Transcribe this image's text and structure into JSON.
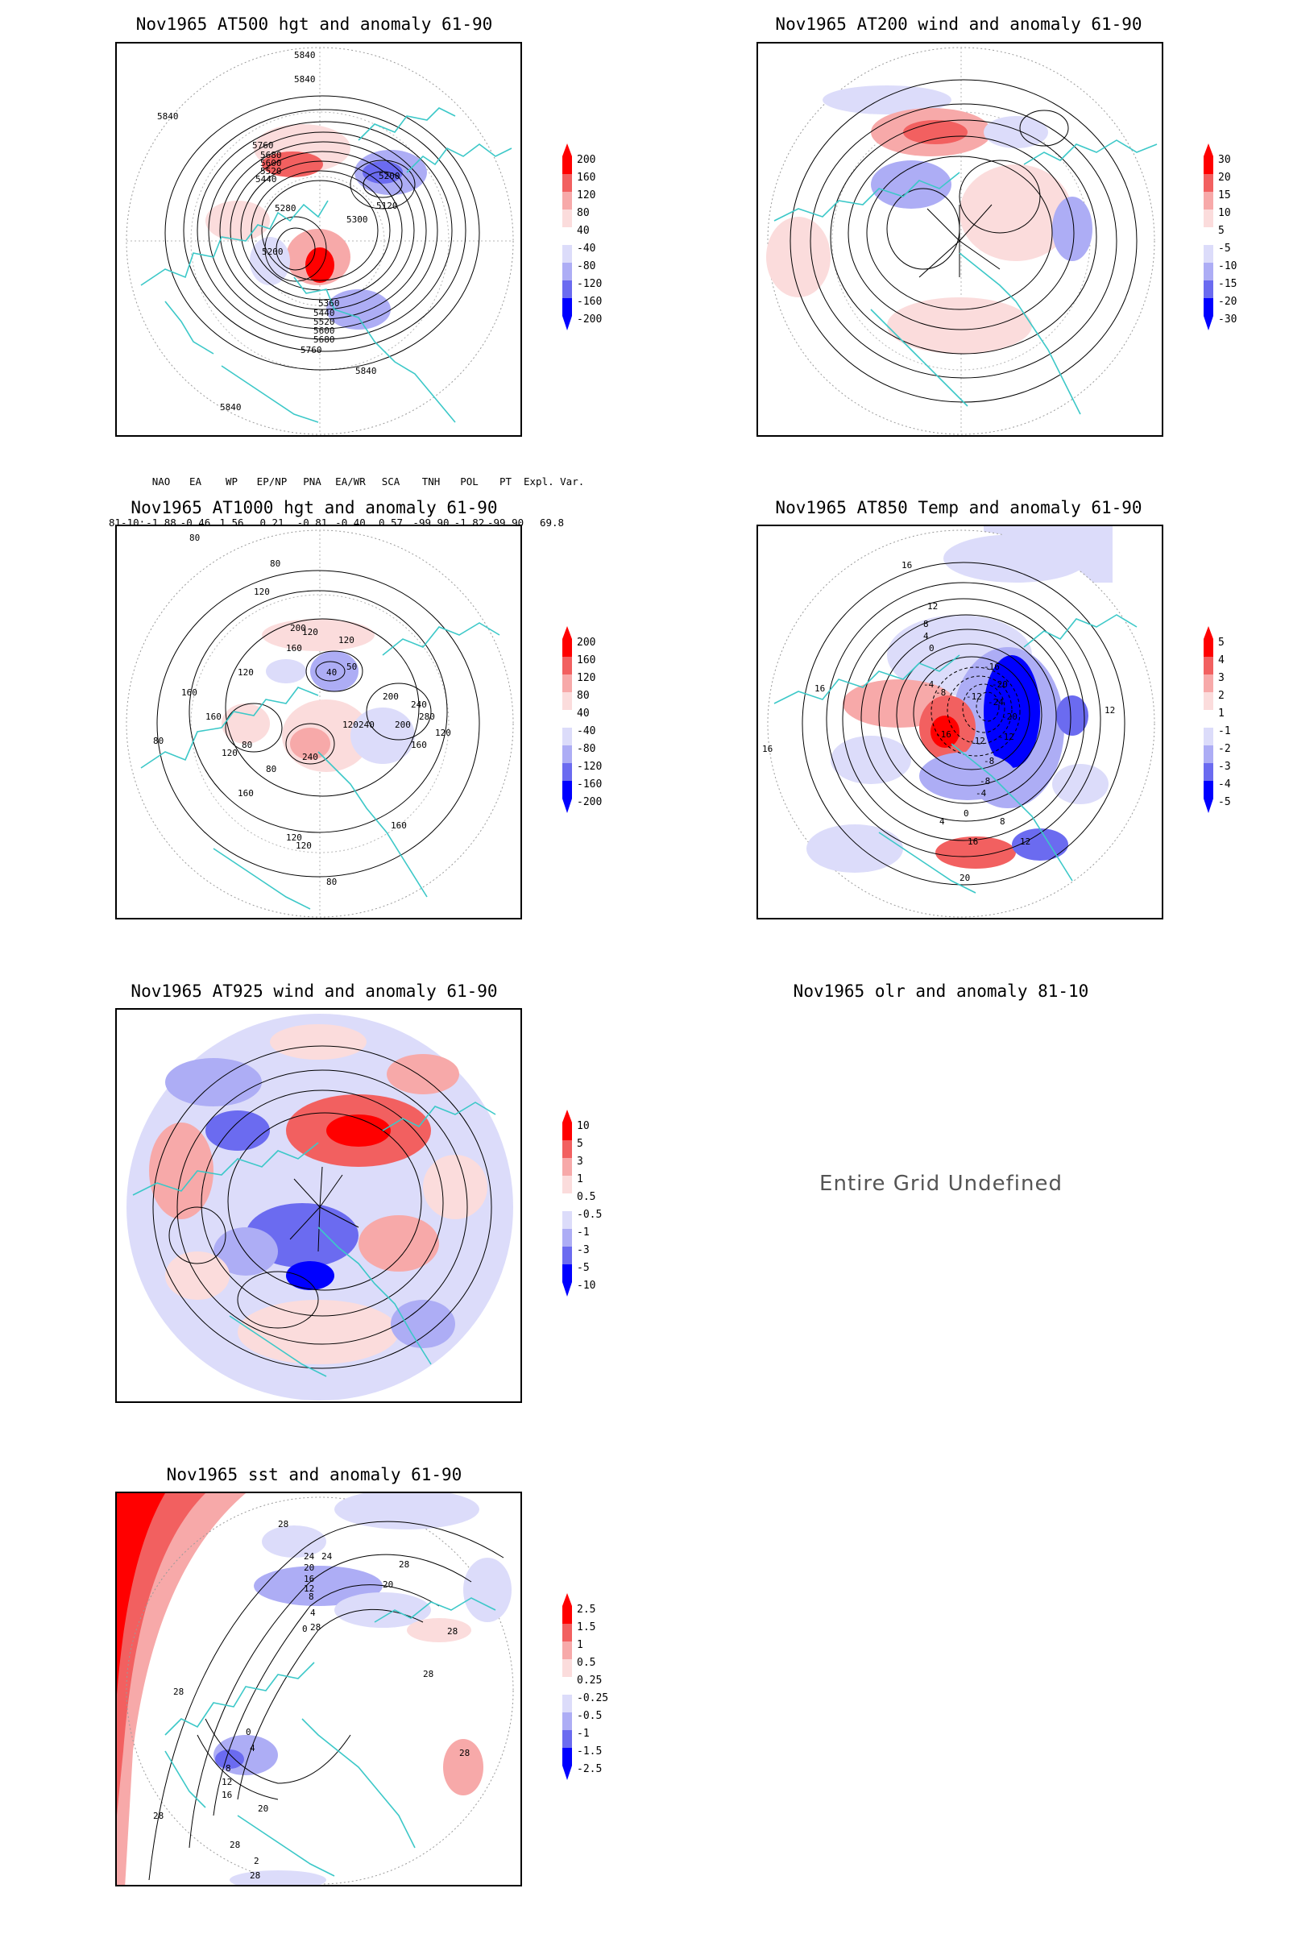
{
  "panels": {
    "p1": {
      "title": "Nov1965 AT500 hgt and anomaly 61-90",
      "contour_labels": [
        "5840",
        "5840",
        "5840",
        "5760",
        "5680",
        "5600",
        "5520",
        "5440",
        "5200",
        "5120",
        "5280",
        "5200",
        "5360",
        "5440",
        "5520",
        "5600",
        "5680",
        "5760",
        "5840",
        "5840",
        "5300"
      ],
      "colorbar": [
        "200",
        "160",
        "120",
        "80",
        "40",
        "-40",
        "-80",
        "-120",
        "-160",
        "-200"
      ]
    },
    "p2": {
      "title": "Nov1965 AT200 wind and anomaly 61-90",
      "colorbar": [
        "30",
        "20",
        "15",
        "10",
        "5",
        "-5",
        "-10",
        "-15",
        "-20",
        "-30"
      ]
    },
    "p3": {
      "title": "Nov1965 AT1000 hgt and anomaly 61-90",
      "contour_labels": [
        "80",
        "80",
        "120",
        "200",
        "160",
        "120",
        "160",
        "120",
        "80",
        "240",
        "120",
        "80",
        "200",
        "240",
        "280",
        "200",
        "160",
        "120",
        "120",
        "160",
        "120",
        "80",
        "40",
        "50",
        "240",
        "160",
        "120",
        "160",
        "120",
        "80"
      ],
      "colorbar": [
        "200",
        "160",
        "120",
        "80",
        "40",
        "-40",
        "-80",
        "-120",
        "-160",
        "-200"
      ]
    },
    "p4": {
      "title": "Nov1965 AT850 Temp and anomaly 61-90",
      "contour_labels": [
        "16",
        "12",
        "8",
        "4",
        "0",
        "-4",
        "-8",
        "-12",
        "-16",
        "-20",
        "-24",
        "-16",
        "-12",
        "-8",
        "-4",
        "0",
        "4",
        "8",
        "12",
        "16",
        "20",
        "16",
        "12",
        "16",
        "-20",
        "-12",
        "-8"
      ],
      "colorbar": [
        "5",
        "4",
        "3",
        "2",
        "1",
        "-1",
        "-2",
        "-3",
        "-4",
        "-5"
      ]
    },
    "p5": {
      "title": "Nov1965 AT925 wind and anomaly 61-90",
      "colorbar": [
        "10",
        "5",
        "3",
        "1",
        "0.5",
        "-0.5",
        "-1",
        "-3",
        "-5",
        "-10"
      ]
    },
    "p6": {
      "title": "Nov1965 olr and anomaly 81-10",
      "message": "Entire Grid Undefined"
    },
    "p7": {
      "title": "Nov1965 sst and anomaly 61-90",
      "contour_labels": [
        "28",
        "28",
        "24",
        "24",
        "20",
        "16",
        "12",
        "8",
        "4",
        "0",
        "28",
        "28",
        "20",
        "28",
        "28",
        "28",
        "16",
        "12",
        "8",
        "4",
        "0",
        "20",
        "28",
        "28",
        "28",
        "2"
      ],
      "colorbar": [
        "2.5",
        "1.5",
        "1",
        "0.5",
        "0.25",
        "-0.25",
        "-0.5",
        "-1",
        "-1.5",
        "-2.5"
      ]
    }
  },
  "indices": {
    "headers": [
      "NAO",
      "EA",
      "WP",
      "EP/NP",
      "PNA",
      "EA/WR",
      "SCA",
      "TNH",
      "POL",
      "PT",
      "Expl. Var."
    ],
    "row_label": "81-10:",
    "values": [
      "-1.88",
      "-0.46",
      "1.56",
      "0.21",
      "-0.81",
      "-0.40",
      "0.57",
      "-99.90",
      "-1.82",
      "-99.90",
      "69.8"
    ]
  },
  "colors": {
    "red_strong": "#ff0000",
    "red_mid": "#f26060",
    "red_light": "#f7a9a9",
    "red_pale": "#fbdcdc",
    "blue_pale": "#dcdcfa",
    "blue_light": "#adadf5",
    "blue_mid": "#6b6bf0",
    "blue_strong": "#0000ff",
    "coast": "#3cc8c8",
    "contour": "#000000",
    "frame": "#000000"
  }
}
